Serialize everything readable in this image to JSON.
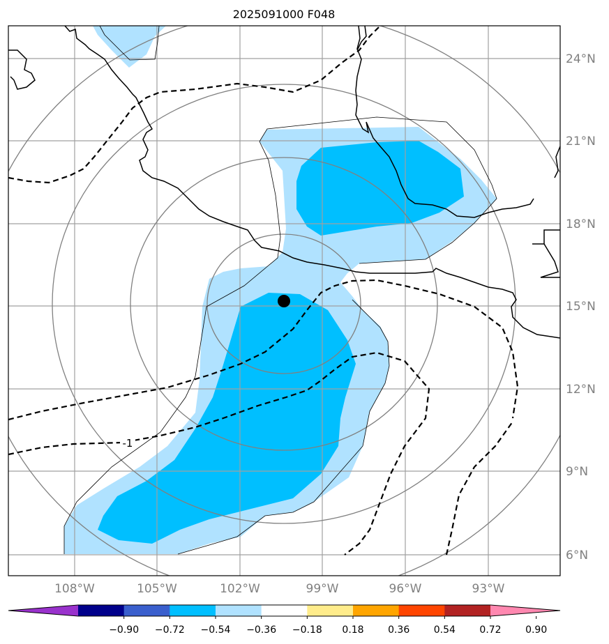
{
  "title": "2025091000 F048",
  "map": {
    "lon_range": [
      -110,
      -91
    ],
    "lat_range": [
      5.3,
      25.3
    ],
    "lat_labels": [
      "24°N",
      "21°N",
      "18°N",
      "15°N",
      "12°N",
      "9°N",
      "6°N"
    ],
    "lon_labels": [
      "108°W",
      "105°W",
      "102°W",
      "99°W",
      "96°W",
      "93°W"
    ],
    "storm_center": {
      "lon": -100.5,
      "lat": 15.2
    },
    "contour_label": "-1",
    "label_color": "#808080"
  },
  "colorbar": {
    "tick_labels": [
      "−0.90",
      "−0.72",
      "−0.54",
      "−0.36",
      "−0.18",
      "0.18",
      "0.36",
      "0.54",
      "0.72",
      "0.90"
    ],
    "colors": [
      "#9932cc",
      "#00008b",
      "#3a5fcd",
      "#00bfff",
      "#b0e2ff",
      "#ffffff",
      "#ffec8b",
      "#ffa500",
      "#ff4500",
      "#b22222",
      "#ff88b0"
    ]
  }
}
